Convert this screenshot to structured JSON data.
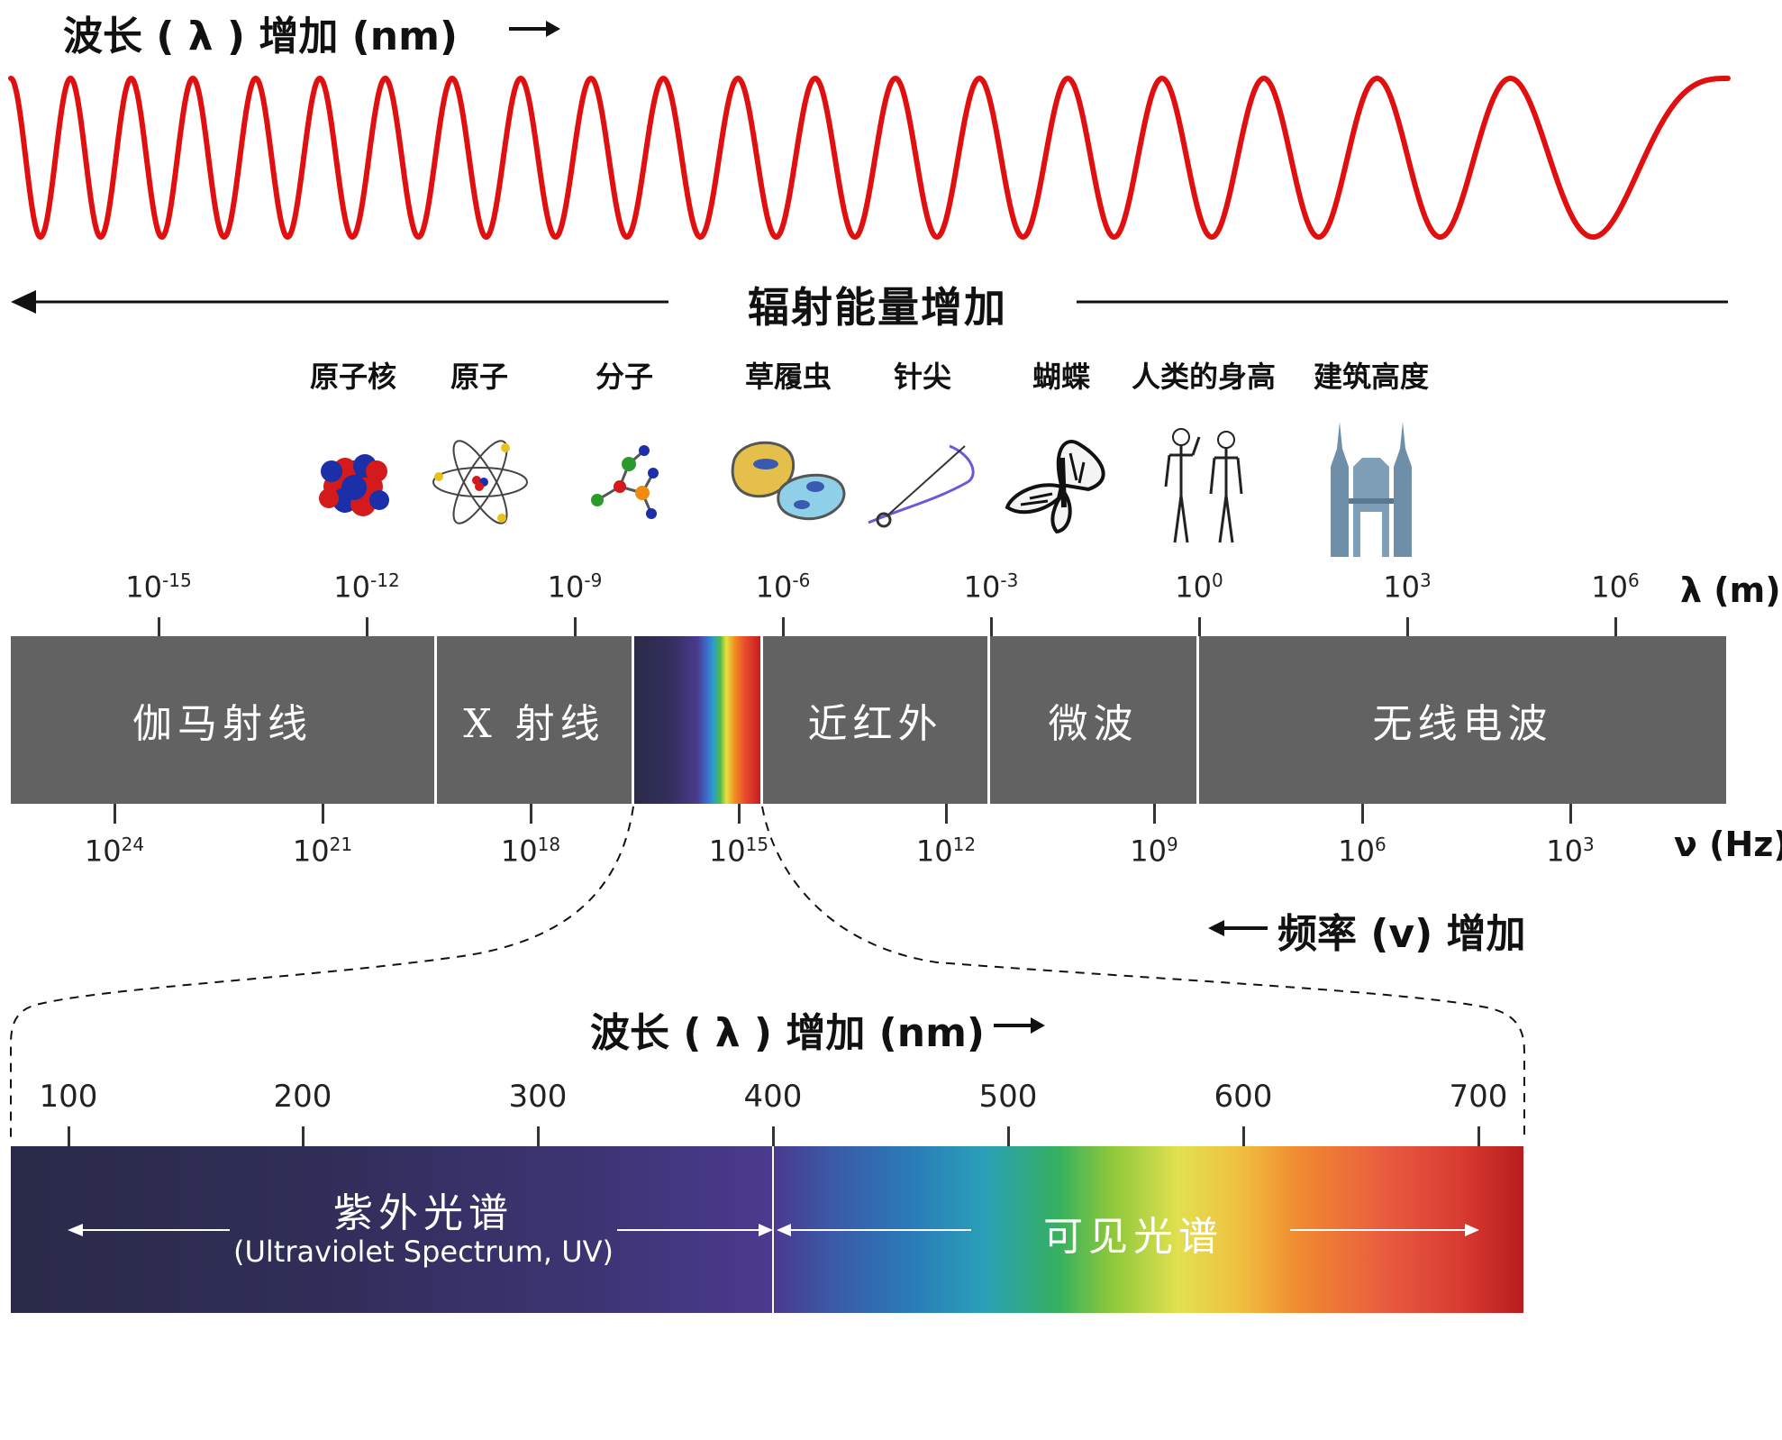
{
  "top_title": "波长 ( λ ) 增加 (nm)",
  "energy_label": "辐射能量增加",
  "objects": [
    {
      "label": "原子核",
      "icon": "nucleus-icon"
    },
    {
      "label": "原子",
      "icon": "atom-icon"
    },
    {
      "label": "分子",
      "icon": "molecule-icon"
    },
    {
      "label": "草履虫",
      "icon": "paramecium-icon"
    },
    {
      "label": "针尖",
      "icon": "needle-icon"
    },
    {
      "label": "蝴蝶",
      "icon": "butterfly-icon"
    },
    {
      "label": "人类的身高",
      "icon": "humans-icon"
    },
    {
      "label": "建筑高度",
      "icon": "towers-icon"
    }
  ],
  "wavelength_axis": {
    "unit": "λ (m)",
    "ticks": [
      {
        "base": "10",
        "exp": "-15"
      },
      {
        "base": "10",
        "exp": "-12"
      },
      {
        "base": "10",
        "exp": "-9"
      },
      {
        "base": "10",
        "exp": "-6"
      },
      {
        "base": "10",
        "exp": "-3"
      },
      {
        "base": "10",
        "exp": "0"
      },
      {
        "base": "10",
        "exp": "3"
      },
      {
        "base": "10",
        "exp": "6"
      }
    ]
  },
  "frequency_axis": {
    "unit": "ν (Hz)",
    "ticks": [
      {
        "base": "10",
        "exp": "24"
      },
      {
        "base": "10",
        "exp": "21"
      },
      {
        "base": "10",
        "exp": "18"
      },
      {
        "base": "10",
        "exp": "15"
      },
      {
        "base": "10",
        "exp": "12"
      },
      {
        "base": "10",
        "exp": "9"
      },
      {
        "base": "10",
        "exp": "6"
      },
      {
        "base": "10",
        "exp": "3"
      }
    ]
  },
  "bands": {
    "gamma": "伽马射线",
    "xray": "X 射线",
    "near_ir": "近红外",
    "microwave": "微波",
    "radio": "无线电波"
  },
  "frequency_label": "频率 (v) 增加",
  "zoom_title": "波长 ( λ ) 增加 (nm)",
  "nm_ticks": [
    "100",
    "200",
    "300",
    "400",
    "500",
    "600",
    "700"
  ],
  "uv_label": "紫外光谱",
  "uv_sub": "(Ultraviolet Spectrum, UV)",
  "visible_label": "可见光谱",
  "colors": {
    "wave": "#e01010",
    "band_gray": "#626262",
    "uv_dark": "#2a2a48",
    "uv_violet": "#4b3a8e"
  }
}
